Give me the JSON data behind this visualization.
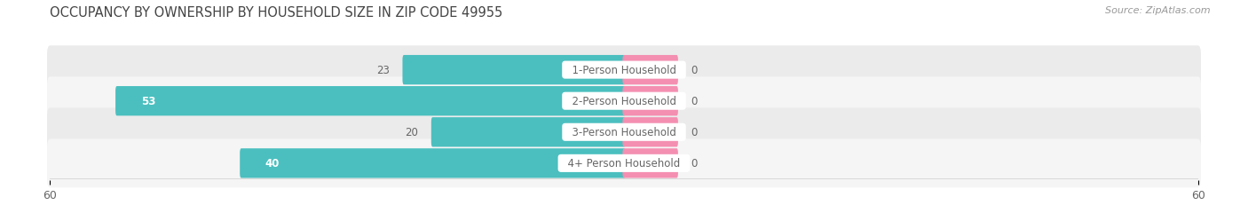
{
  "title": "OCCUPANCY BY OWNERSHIP BY HOUSEHOLD SIZE IN ZIP CODE 49955",
  "source": "Source: ZipAtlas.com",
  "categories": [
    "1-Person Household",
    "2-Person Household",
    "3-Person Household",
    "4+ Person Household"
  ],
  "owner_values": [
    23,
    53,
    20,
    40
  ],
  "renter_values": [
    0,
    0,
    0,
    0
  ],
  "owner_color": "#4bbfbf",
  "renter_color": "#f48fb1",
  "row_bg_even": "#ebebeb",
  "row_bg_odd": "#f5f5f5",
  "xlim": [
    -60,
    60
  ],
  "x_ticks": [
    -60,
    60
  ],
  "label_color": "#666666",
  "title_color": "#444444",
  "source_color": "#999999",
  "title_fontsize": 10.5,
  "source_fontsize": 8,
  "tick_fontsize": 9,
  "legend_fontsize": 9,
  "value_fontsize": 8.5,
  "category_fontsize": 8.5,
  "renter_stub": 5.5,
  "fig_width": 14.06,
  "fig_height": 2.32,
  "background_color": "#ffffff"
}
